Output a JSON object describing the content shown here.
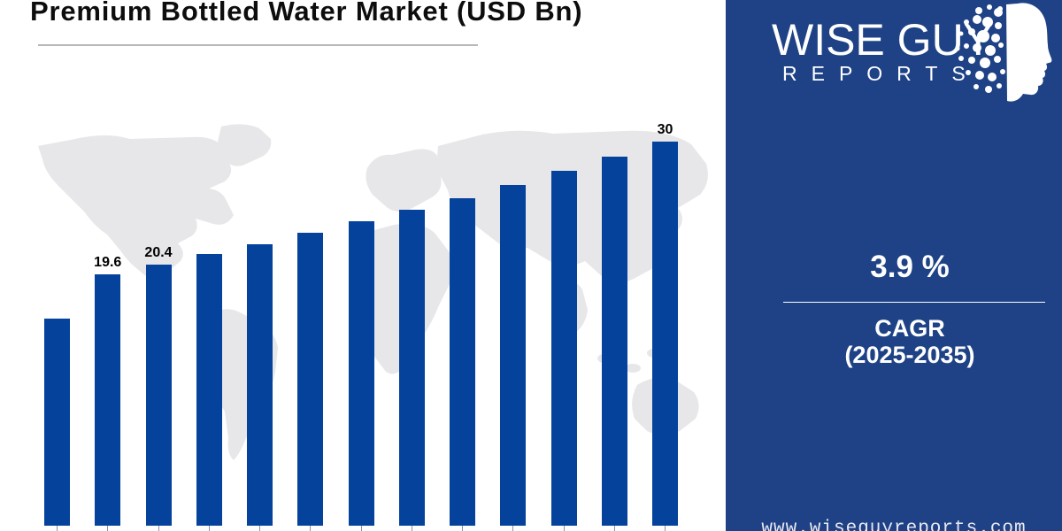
{
  "title": "Premium Bottled Water Market (USD Bn)",
  "brand": {
    "logo_line1": "WISE GUY",
    "logo_line2": "REPORTS",
    "website": "www.wiseguyreports.com"
  },
  "panel": {
    "cagr_value": "3.9 %",
    "cagr_label": "CAGR",
    "cagr_period": "(2025-2035)"
  },
  "colors": {
    "bar_blue": "#05429c",
    "panel_blue": "#1e4285",
    "map_gray": "#e7e7ea",
    "title_black": "#0d0d0d",
    "rule_gray": "#b8b8b8",
    "text_white": "#ffffff"
  },
  "chart_data": {
    "type": "bar",
    "title": "Premium Bottled Water Market (USD Bn)",
    "unit": "USD Bn",
    "categories": [
      "",
      "",
      "",
      "",
      "",
      "",
      "",
      "",
      "",
      "",
      "",
      "",
      ""
    ],
    "values": [
      16.2,
      19.6,
      20.4,
      21.2,
      22,
      22.9,
      23.8,
      24.7,
      25.6,
      26.6,
      27.7,
      28.8,
      30
    ],
    "data_labels": {
      "1": "19.6",
      "2": "20.4",
      "12": "30"
    },
    "ylim": [
      0,
      30
    ],
    "bar_count": 13,
    "x_axis_labels_visible": false,
    "grid": false,
    "legend": false
  }
}
